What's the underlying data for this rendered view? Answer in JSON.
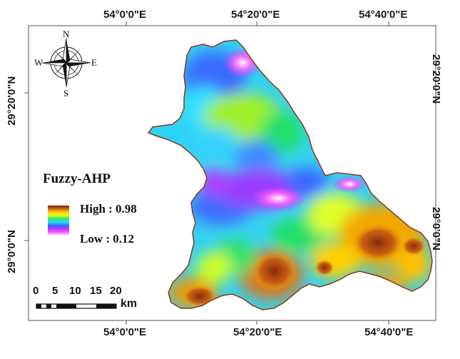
{
  "map": {
    "legend": {
      "title": "Fuzzy-AHP",
      "high_label": "High : 0.98",
      "low_label": "Low : 0.12",
      "high_value": 0.98,
      "low_value": 0.12,
      "color_ramp": [
        "#7a1f08",
        "#c8691a",
        "#ffd200",
        "#dfff2a",
        "#22e86a",
        "#2fd6ff",
        "#3a66ff",
        "#b83cff",
        "#ff55ff",
        "#ffffff"
      ]
    },
    "graticule": {
      "top_labels": [
        "54°0'0\"E",
        "54°20'0\"E",
        "54°40'0\"E"
      ],
      "bottom_labels": [
        "54°0'0\"E",
        "54°20'0\"E",
        "54°40'0\"E"
      ],
      "left_labels": [
        "29°20'0\"N",
        "29°0'0\"N"
      ],
      "right_labels": [
        "29°20'0\"N",
        "29°0'0\"N"
      ]
    },
    "compass": {
      "north": "N",
      "south": "S",
      "east": "E",
      "west": "W"
    },
    "scale_bar": {
      "ticks": [
        "0",
        "5",
        "10",
        "15",
        "20"
      ],
      "unit": "km"
    }
  }
}
